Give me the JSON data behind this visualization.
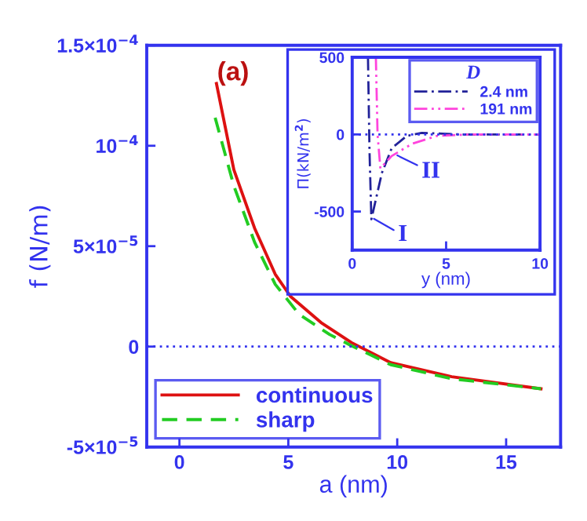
{
  "chart_data": [
    {
      "type": "line",
      "xlabel": "a (nm)",
      "ylabel": "f (N/m)",
      "xlim": [
        -1.5,
        17.5
      ],
      "ylim": [
        -5e-05,
        0.00015
      ],
      "xticks": [
        0,
        5,
        10,
        15
      ],
      "yticks": [
        {
          "value": -5e-05,
          "label": "-5×10$^{−5}$"
        },
        0,
        {
          "value": 5e-05,
          "label": "5×10$^{−5}$"
        },
        {
          "value": 0.0001,
          "label": "10$^{−4}$"
        },
        {
          "value": 0.00015,
          "label": "1.5×10$^{−4}$"
        }
      ],
      "series": [
        {
          "name": "continuous",
          "color": "#dd1111",
          "line_style": "solid",
          "x": [
            1.7,
            2.5,
            3.45,
            4.4,
            5.1,
            6.5,
            7.9,
            9.7,
            12.5,
            16.6
          ],
          "values": [
            0.000131,
            8.8e-05,
            5.9e-05,
            3.6e-05,
            2.5e-05,
            1.2e-05,
            2e-06,
            -8e-06,
            -1.5e-05,
            -2.1e-05
          ]
        },
        {
          "name": "sharp",
          "color": "#22cc22",
          "line_style": "dashed",
          "x": [
            1.64,
            2.5,
            3.45,
            4.4,
            5.5,
            6.9,
            7.8,
            9.7,
            12.5,
            16.6
          ],
          "values": [
            0.000114,
            8e-05,
            5.2e-05,
            3.1e-05,
            1.6e-05,
            6e-06,
            1e-06,
            -9e-06,
            -1.6e-05,
            -2.1e-05
          ]
        }
      ],
      "ref_lines": [
        {
          "axis": "y",
          "value": 0,
          "color": "#3333ee",
          "line_style": "dotted"
        }
      ],
      "annotations": [
        "(a)"
      ],
      "legend": "bottom left",
      "grid": false
    },
    {
      "type": "line",
      "xlabel": "y (nm)",
      "ylabel": "Π(kN/m$^{2}$)",
      "xlim": [
        0,
        10
      ],
      "ylim": [
        -750,
        500
      ],
      "xticks": [
        0,
        5,
        10
      ],
      "yticks": [
        -500,
        0,
        500
      ],
      "legend_title": "D",
      "series": [
        {
          "name": "2.4 nm",
          "color": "#222299",
          "line_style": "dashdot",
          "x": [
            0.84,
            0.92,
            1.02,
            1.3,
            1.58,
            2.1,
            2.9,
            3.7,
            5.8,
            10
          ],
          "values": [
            500,
            -100,
            -550,
            -400,
            -250,
            -90,
            -10,
            10,
            0,
            0
          ]
        },
        {
          "name": "191 nm",
          "color": "#ff44dd",
          "line_style": "dashdotdot",
          "x": [
            1.26,
            1.35,
            1.5,
            2.1,
            3.2,
            4.5,
            6.3,
            10
          ],
          "values": [
            500,
            0,
            -220,
            -140,
            -60,
            -10,
            0,
            0
          ]
        }
      ],
      "ref_lines": [
        {
          "axis": "y",
          "value": 0,
          "color": "#3333ee",
          "line_style": "dotted"
        }
      ],
      "annotations": [
        {
          "text": "I",
          "x": 1.05,
          "y": -540
        },
        {
          "text": "II",
          "x": 2.3,
          "y": -130
        }
      ],
      "legend": "top right",
      "grid": false
    }
  ]
}
